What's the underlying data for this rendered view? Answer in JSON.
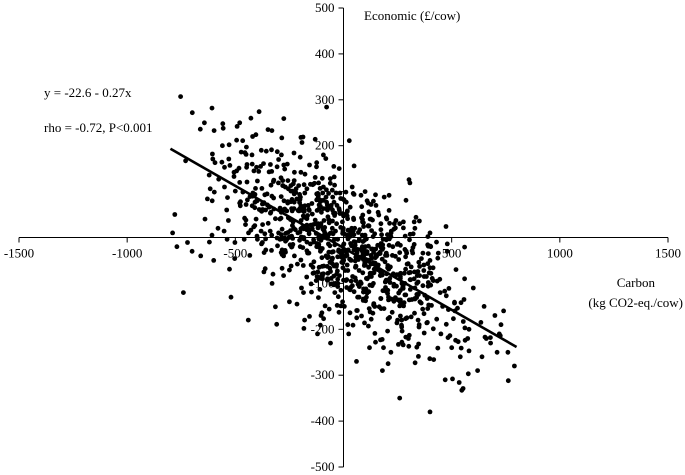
{
  "chart_data": {
    "type": "scatter",
    "xlabel_line1": "Carbon",
    "xlabel_line2": "(kg CO2-eq./cow)",
    "ylabel": "Economic (£/cow)",
    "xlim": [
      -1500,
      1500
    ],
    "ylim": [
      -500,
      500
    ],
    "x_ticks": [
      -1500,
      -1000,
      -500,
      0,
      500,
      1000,
      1500
    ],
    "x_tick_labels": [
      "-1500",
      "-1000",
      "-500",
      "",
      "500",
      "1000",
      "1500"
    ],
    "y_ticks": [
      500,
      400,
      300,
      200,
      100,
      0,
      -100,
      -200,
      -300,
      -400,
      -500
    ],
    "y_tick_labels": [
      "500",
      "400",
      "300",
      "200",
      "",
      "",
      "-100",
      "-200",
      "-300",
      "-400",
      "-500"
    ],
    "grid": false,
    "equation": "y = -22.6 - 0.27x",
    "stats": "rho = -0.72, P<0.001",
    "trendline": {
      "intercept": -22.6,
      "slope": -0.27,
      "x": [
        -800,
        800
      ]
    },
    "n_points": 1000,
    "point_color": "#000000",
    "points": [
      [
        -790,
        10
      ],
      [
        -770,
        -20
      ],
      [
        -740,
        -120
      ],
      [
        -780,
        50
      ],
      [
        -700,
        -30
      ],
      [
        -640,
        40
      ],
      [
        -560,
        200
      ],
      [
        -600,
        -50
      ],
      [
        -520,
        -130
      ],
      [
        -480,
        250
      ],
      [
        -420,
        220
      ],
      [
        -380,
        190
      ],
      [
        -300,
        170
      ],
      [
        -260,
        160
      ],
      [
        -250,
        -140
      ],
      [
        -180,
        -180
      ],
      [
        -120,
        -210
      ],
      [
        -60,
        -230
      ],
      [
        -440,
        -180
      ],
      [
        -330,
        -100
      ],
      [
        -20,
        150
      ],
      [
        40,
        110
      ],
      [
        100,
        100
      ],
      [
        150,
        70
      ],
      [
        200,
        40
      ],
      [
        260,
        30
      ],
      [
        330,
        20
      ],
      [
        400,
        10
      ],
      [
        430,
        -10
      ],
      [
        480,
        -30
      ],
      [
        520,
        -70
      ],
      [
        560,
        -90
      ],
      [
        600,
        -110
      ],
      [
        650,
        -150
      ],
      [
        700,
        -170
      ],
      [
        720,
        -210
      ],
      [
        760,
        -250
      ],
      [
        790,
        -280
      ],
      [
        740,
        -160
      ],
      [
        680,
        -230
      ],
      [
        620,
        -290
      ],
      [
        540,
        -260
      ],
      [
        470,
        -310
      ],
      [
        400,
        -380
      ],
      [
        260,
        -350
      ],
      [
        180,
        -290
      ],
      [
        120,
        -240
      ],
      [
        60,
        -270
      ],
      [
        20,
        -190
      ],
      [
        -40,
        -120
      ],
      [
        -100,
        -80
      ],
      [
        -150,
        -60
      ],
      [
        -200,
        -20
      ],
      [
        -300,
        10
      ],
      [
        -360,
        60
      ],
      [
        -420,
        90
      ],
      [
        -480,
        120
      ],
      [
        -540,
        60
      ],
      [
        -580,
        20
      ],
      [
        -620,
        -10
      ],
      [
        -660,
        -40
      ],
      [
        300,
        -220
      ],
      [
        350,
        -190
      ],
      [
        250,
        -180
      ],
      [
        450,
        -210
      ],
      [
        500,
        -240
      ],
      [
        580,
        -200
      ],
      [
        640,
        -260
      ],
      [
        660,
        -220
      ],
      [
        710,
        -250
      ]
    ]
  }
}
